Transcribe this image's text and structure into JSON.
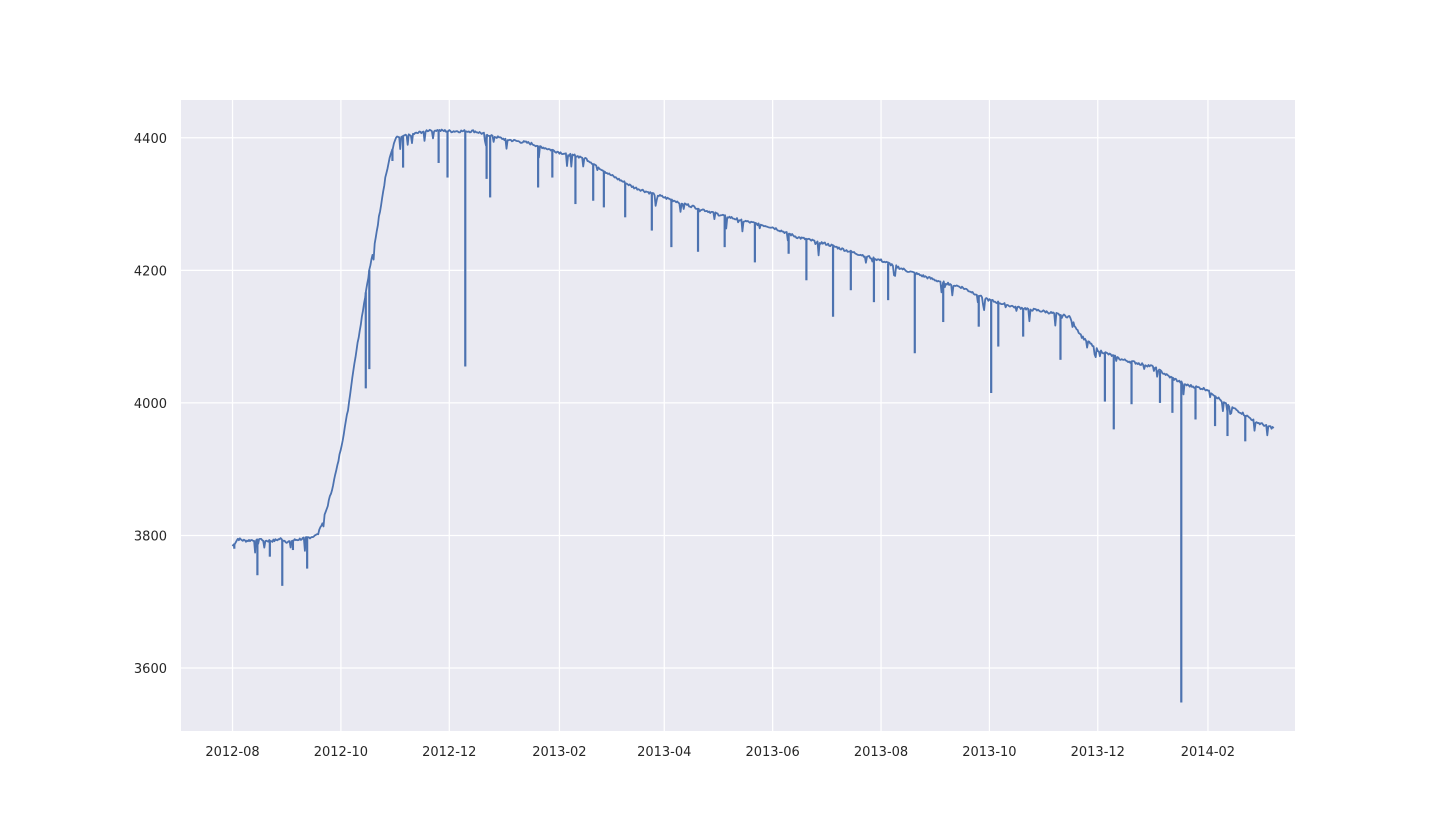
{
  "chart_data": {
    "type": "line",
    "title": "",
    "xlabel": "",
    "ylabel": "",
    "x_tick_labels": [
      "2012-08",
      "2012-10",
      "2012-12",
      "2013-02",
      "2013-04",
      "2013-06",
      "2013-08",
      "2013-10",
      "2013-12",
      "2014-02"
    ],
    "y_tick_labels": [
      "3600",
      "3800",
      "4000",
      "4200",
      "4400"
    ],
    "x_range": [
      "2012-07-03",
      "2014-03-22"
    ],
    "ylim": [
      3505,
      4457
    ],
    "grid": true,
    "legend": "none",
    "colors": {
      "background": "#eaeaf2",
      "grid": "#ffffff",
      "line": "#4c72b0",
      "text": "#262626"
    },
    "series": [
      {
        "points": [
          [
            "2012-08-01",
            3784
          ],
          [
            "2012-08-04",
            3795
          ],
          [
            "2012-08-08",
            3792
          ],
          [
            "2012-08-12",
            3793
          ],
          [
            "2012-08-16",
            3795
          ],
          [
            "2012-08-20",
            3792
          ],
          [
            "2012-08-24",
            3792
          ],
          [
            "2012-08-28",
            3795
          ],
          [
            "2012-09-01",
            3790
          ],
          [
            "2012-09-05",
            3793
          ],
          [
            "2012-09-09",
            3795
          ],
          [
            "2012-09-13",
            3797
          ],
          [
            "2012-09-17",
            3800
          ],
          [
            "2012-09-20",
            3815
          ],
          [
            "2012-09-23",
            3840
          ],
          [
            "2012-09-26",
            3870
          ],
          [
            "2012-09-29",
            3905
          ],
          [
            "2012-10-02",
            3945
          ],
          [
            "2012-10-05",
            3990
          ],
          [
            "2012-10-08",
            4050
          ],
          [
            "2012-10-11",
            4100
          ],
          [
            "2012-10-14",
            4150
          ],
          [
            "2012-10-17",
            4200
          ],
          [
            "2012-10-20",
            4240
          ],
          [
            "2012-10-23",
            4290
          ],
          [
            "2012-10-26",
            4340
          ],
          [
            "2012-10-29",
            4375
          ],
          [
            "2012-11-01",
            4400
          ],
          [
            "2012-11-10",
            4405
          ],
          [
            "2012-11-20",
            4412
          ],
          [
            "2012-12-01",
            4410
          ],
          [
            "2012-12-15",
            4410
          ],
          [
            "2013-01-01",
            4398
          ],
          [
            "2013-01-15",
            4392
          ],
          [
            "2013-02-01",
            4378
          ],
          [
            "2013-02-15",
            4370
          ],
          [
            "2013-03-01",
            4345
          ],
          [
            "2013-03-15",
            4325
          ],
          [
            "2013-04-01",
            4310
          ],
          [
            "2013-04-15",
            4298
          ],
          [
            "2013-05-01",
            4285
          ],
          [
            "2013-05-15",
            4275
          ],
          [
            "2013-06-01",
            4265
          ],
          [
            "2013-06-15",
            4250
          ],
          [
            "2013-07-01",
            4240
          ],
          [
            "2013-07-15",
            4228
          ],
          [
            "2013-08-01",
            4215
          ],
          [
            "2013-08-15",
            4200
          ],
          [
            "2013-09-01",
            4185
          ],
          [
            "2013-09-15",
            4175
          ],
          [
            "2013-10-01",
            4155
          ],
          [
            "2013-10-15",
            4145
          ],
          [
            "2013-11-01",
            4138
          ],
          [
            "2013-11-15",
            4130
          ],
          [
            "2013-11-22",
            4100
          ],
          [
            "2013-12-01",
            4080
          ],
          [
            "2013-12-15",
            4065
          ],
          [
            "2014-01-01",
            4055
          ],
          [
            "2014-01-10",
            4040
          ],
          [
            "2014-01-20",
            4027
          ],
          [
            "2014-02-01",
            4020
          ],
          [
            "2014-02-10",
            4000
          ],
          [
            "2014-02-20",
            3985
          ],
          [
            "2014-03-01",
            3970
          ],
          [
            "2014-03-10",
            3962
          ]
        ],
        "dips": [
          [
            "2012-08-02",
            3780
          ],
          [
            "2012-08-15",
            3740
          ],
          [
            "2012-08-22",
            3768
          ],
          [
            "2012-08-29",
            3724
          ],
          [
            "2012-09-04",
            3778
          ],
          [
            "2012-09-12",
            3750
          ],
          [
            "2012-10-15",
            4022
          ],
          [
            "2012-10-17",
            4051
          ],
          [
            "2012-10-30",
            4365
          ],
          [
            "2012-11-05",
            4355
          ],
          [
            "2012-11-25",
            4362
          ],
          [
            "2012-11-30",
            4340
          ],
          [
            "2012-12-10",
            4055
          ],
          [
            "2012-12-22",
            4338
          ],
          [
            "2012-12-24",
            4310
          ],
          [
            "2013-01-20",
            4325
          ],
          [
            "2013-01-28",
            4340
          ],
          [
            "2013-02-10",
            4300
          ],
          [
            "2013-02-20",
            4305
          ],
          [
            "2013-02-26",
            4295
          ],
          [
            "2013-03-10",
            4280
          ],
          [
            "2013-03-25",
            4260
          ],
          [
            "2013-04-05",
            4235
          ],
          [
            "2013-04-20",
            4228
          ],
          [
            "2013-05-05",
            4235
          ],
          [
            "2013-05-22",
            4212
          ],
          [
            "2013-06-10",
            4225
          ],
          [
            "2013-06-20",
            4185
          ],
          [
            "2013-07-05",
            4130
          ],
          [
            "2013-07-15",
            4170
          ],
          [
            "2013-07-28",
            4152
          ],
          [
            "2013-08-05",
            4155
          ],
          [
            "2013-08-20",
            4075
          ],
          [
            "2013-09-05",
            4122
          ],
          [
            "2013-09-25",
            4115
          ],
          [
            "2013-10-02",
            4015
          ],
          [
            "2013-10-06",
            4085
          ],
          [
            "2013-10-20",
            4100
          ],
          [
            "2013-11-10",
            4065
          ],
          [
            "2013-12-05",
            4002
          ],
          [
            "2013-12-10",
            3960
          ],
          [
            "2013-12-20",
            3998
          ],
          [
            "2014-01-05",
            4000
          ],
          [
            "2014-01-12",
            3985
          ],
          [
            "2014-01-17",
            3548
          ],
          [
            "2014-01-25",
            3975
          ],
          [
            "2014-02-05",
            3965
          ],
          [
            "2014-02-12",
            3950
          ],
          [
            "2014-02-22",
            3942
          ]
        ]
      }
    ]
  }
}
